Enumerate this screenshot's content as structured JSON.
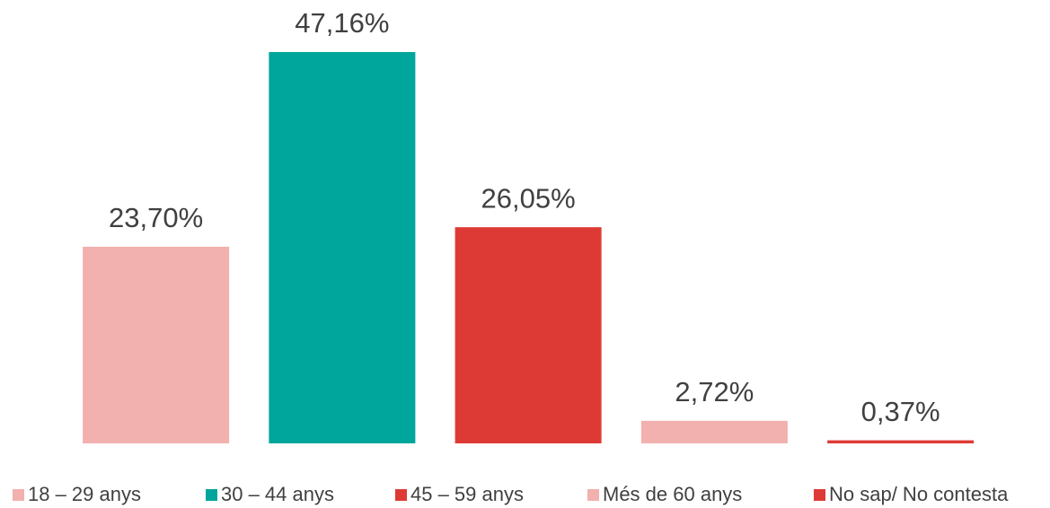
{
  "chart_data": {
    "type": "bar",
    "categories": [
      "18 – 29 anys",
      "30 – 44 anys",
      "45 – 59 anys",
      "Més de 60 anys",
      "No sap/ No contesta"
    ],
    "values": [
      23.7,
      47.16,
      26.05,
      2.72,
      0.37
    ],
    "value_labels": [
      "23,70%",
      "47,16%",
      "26,05%",
      "2,72%",
      "0,37%"
    ],
    "colors": [
      "#f2b0ae",
      "#00a59b",
      "#de3a35",
      "#f2b0ae",
      "#de3a35"
    ]
  }
}
